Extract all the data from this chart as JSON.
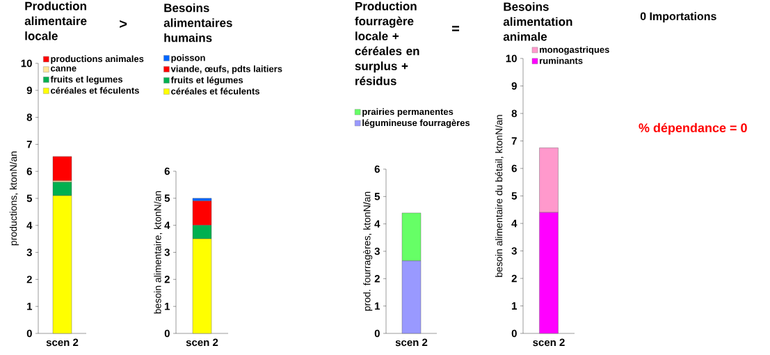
{
  "chart_data": [
    {
      "type": "bar",
      "stacked": true,
      "title": "Production alimentaire locale",
      "ylabel": "productions, ktonN/an",
      "categories": [
        "scen 2"
      ],
      "ylim": [
        0,
        10
      ],
      "yticks": [
        0,
        1,
        2,
        3,
        4,
        5,
        6,
        7,
        8,
        9,
        10
      ],
      "legend": "top right",
      "annotations": [
        ">"
      ],
      "series": [
        {
          "name": "céréales et féculents",
          "color": "#ffff00",
          "values": [
            5.1
          ]
        },
        {
          "name": "fruits et legumes",
          "color": "#00b050",
          "values": [
            0.5
          ]
        },
        {
          "name": "canne",
          "color": "#ffe699",
          "values": [
            0.05
          ]
        },
        {
          "name": "productions animales",
          "color": "#ff0000",
          "values": [
            0.9
          ]
        }
      ]
    },
    {
      "type": "bar",
      "stacked": true,
      "title": "Besoins alimentaires humains",
      "ylabel": "besoin alimentaire, ktonN/an",
      "categories": [
        "scen 2"
      ],
      "ylim": [
        0,
        6
      ],
      "yticks": [
        0,
        1,
        2,
        3,
        4,
        5,
        6
      ],
      "legend": "top",
      "series": [
        {
          "name": "céréales et féculents",
          "color": "#ffff00",
          "values": [
            3.5
          ]
        },
        {
          "name": "fruits et légumes",
          "color": "#00b050",
          "values": [
            0.5
          ]
        },
        {
          "name": "viande, œufs, pdts laitiers",
          "color": "#ff0000",
          "values": [
            0.9
          ]
        },
        {
          "name": "poisson",
          "color": "#0066ff",
          "values": [
            0.1
          ]
        }
      ]
    },
    {
      "type": "bar",
      "stacked": true,
      "title": "Production fourragère locale + céréales en surplus + résidus",
      "ylabel": "prod. fourragères, ktonN/an",
      "categories": [
        "scen 2"
      ],
      "ylim": [
        0,
        6
      ],
      "yticks": [
        0,
        1,
        2,
        3,
        4,
        5,
        6
      ],
      "legend": "top",
      "annotations": [
        "="
      ],
      "series": [
        {
          "name": "légumineuse fourragères",
          "color": "#9999ff",
          "values": [
            2.65
          ]
        },
        {
          "name": "prairies permanentes",
          "color": "#66ff66",
          "values": [
            1.75
          ]
        }
      ]
    },
    {
      "type": "bar",
      "stacked": true,
      "title": "Besoins alimentation animale",
      "ylabel": "besoin alimentaire du bétail, ktonN/an",
      "categories": [
        "scen 2"
      ],
      "ylim": [
        0,
        10
      ],
      "yticks": [
        0,
        1,
        2,
        3,
        4,
        5,
        6,
        7,
        8,
        9,
        10
      ],
      "legend": "top right",
      "annotations": [
        "0 Importations",
        "% dépendance = 0"
      ],
      "series": [
        {
          "name": "ruminants",
          "color": "#ff00ff",
          "values": [
            4.4
          ]
        },
        {
          "name": "monogastriques",
          "color": "#ff99cc",
          "values": [
            2.35
          ]
        }
      ]
    }
  ]
}
